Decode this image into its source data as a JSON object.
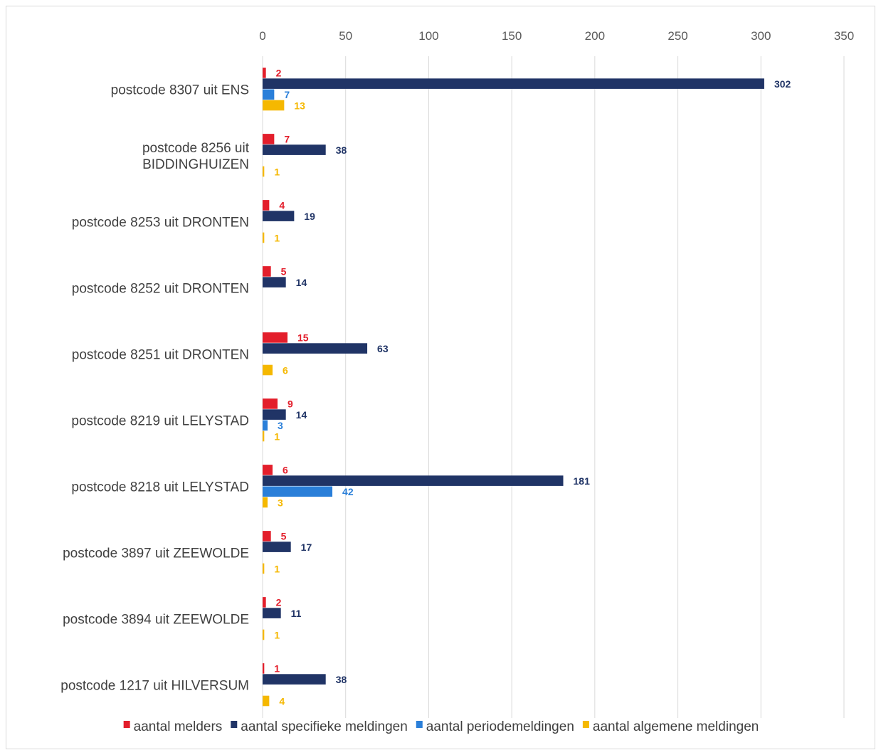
{
  "chart_data": {
    "type": "bar",
    "orientation": "horizontal",
    "title": "",
    "xlabel": "",
    "ylabel": "",
    "xlim": [
      0,
      350
    ],
    "x_ticks": [
      "0",
      "50",
      "100",
      "150",
      "200",
      "250",
      "300",
      "350"
    ],
    "x_axis_position": "top",
    "grid": "vertical",
    "legend_position": "bottom",
    "categories": [
      [
        "postcode 8307 uit ENS"
      ],
      [
        "postcode 8256 uit",
        "BIDDINGHUIZEN"
      ],
      [
        "postcode 8253 uit DRONTEN"
      ],
      [
        "postcode 8252 uit DRONTEN"
      ],
      [
        "postcode 8251 uit DRONTEN"
      ],
      [
        "postcode 8219 uit LELYSTAD"
      ],
      [
        "postcode 8218 uit LELYSTAD"
      ],
      [
        "postcode 3897 uit ZEEWOLDE"
      ],
      [
        "postcode 3894 uit ZEEWOLDE"
      ],
      [
        "postcode 1217 uit HILVERSUM"
      ]
    ],
    "series": [
      {
        "name": "aantal melders",
        "color": "#e31e2b",
        "values": [
          2,
          7,
          4,
          5,
          15,
          9,
          6,
          5,
          2,
          1
        ]
      },
      {
        "name": "aantal specifieke meldingen",
        "color": "#203466",
        "values": [
          302,
          38,
          19,
          14,
          63,
          14,
          181,
          17,
          11,
          38
        ]
      },
      {
        "name": "aantal periodemeldingen",
        "color": "#2a7fd9",
        "values": [
          7,
          null,
          null,
          null,
          null,
          3,
          42,
          null,
          null,
          null
        ]
      },
      {
        "name": "aantal algemene meldingen",
        "color": "#f5b800",
        "values": [
          13,
          1,
          1,
          null,
          6,
          1,
          3,
          1,
          1,
          4
        ]
      }
    ],
    "colors": {
      "grid": "#d9d9d9",
      "axis_text": "#595959",
      "category_text": "#404040"
    }
  }
}
